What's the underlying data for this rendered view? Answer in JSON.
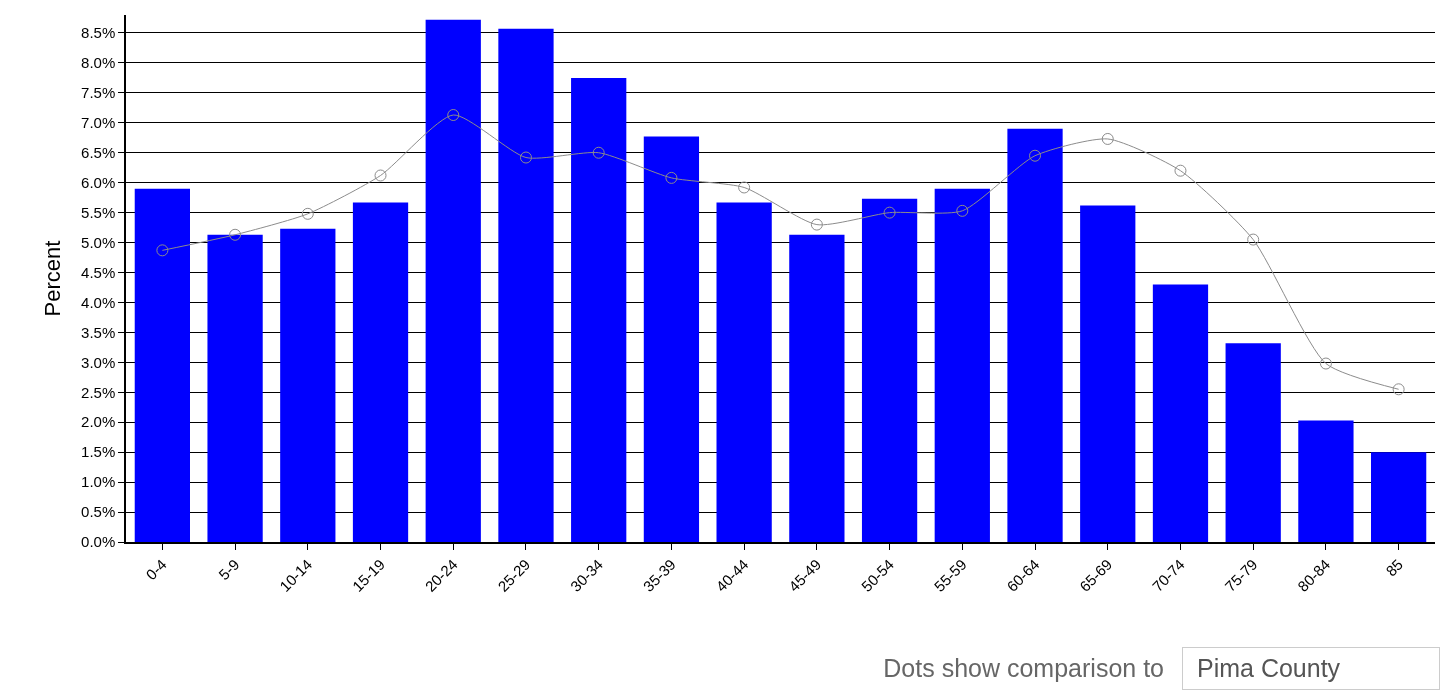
{
  "chart_data": {
    "type": "bar",
    "ylabel": "Percent",
    "categories": [
      "0-4",
      "5-9",
      "10-14",
      "15-19",
      "20-24",
      "25-29",
      "30-34",
      "35-39",
      "40-44",
      "45-49",
      "50-54",
      "55-59",
      "60-64",
      "65-69",
      "70-74",
      "75-79",
      "80-84",
      "85"
    ],
    "series": [
      {
        "color": "#0000ff",
        "values": [
          5.9,
          5.13,
          5.23,
          5.67,
          8.72,
          8.57,
          7.75,
          6.77,
          5.67,
          5.13,
          5.73,
          5.9,
          6.9,
          5.62,
          4.3,
          3.32,
          2.03,
          1.5
        ]
      },
      {
        "type": "line",
        "color": "#8c8c8c",
        "marker": "circle",
        "values": [
          4.87,
          5.13,
          5.48,
          6.12,
          7.13,
          6.42,
          6.5,
          6.08,
          5.92,
          5.3,
          5.5,
          5.53,
          6.45,
          6.73,
          6.2,
          5.05,
          2.98,
          2.55
        ]
      }
    ],
    "ylim": [
      0,
      8.8
    ],
    "yticks": [
      {
        "value": 0,
        "label": "0.0%"
      },
      {
        "value": 0.5,
        "label": "0.5%"
      },
      {
        "value": 1,
        "label": "1.0%"
      },
      {
        "value": 1.5,
        "label": "1.5%"
      },
      {
        "value": 2,
        "label": "2.0%"
      },
      {
        "value": 2.5,
        "label": "2.5%"
      },
      {
        "value": 3,
        "label": "3.0%"
      },
      {
        "value": 3.5,
        "label": "3.5%"
      },
      {
        "value": 4,
        "label": "4.0%"
      },
      {
        "value": 4.5,
        "label": "4.5%"
      },
      {
        "value": 5,
        "label": "5.0%"
      },
      {
        "value": 5.5,
        "label": "5.5%"
      },
      {
        "value": 6,
        "label": "6.0%"
      },
      {
        "value": 6.5,
        "label": "6.5%"
      },
      {
        "value": 7,
        "label": "7.0%"
      },
      {
        "value": 7.5,
        "label": "7.5%"
      },
      {
        "value": 8,
        "label": "8.0%"
      },
      {
        "value": 8.5,
        "label": "8.5%"
      }
    ],
    "grid": "y",
    "legend": false,
    "annotations": [
      "Dots show comparison to",
      "Pima County"
    ]
  }
}
